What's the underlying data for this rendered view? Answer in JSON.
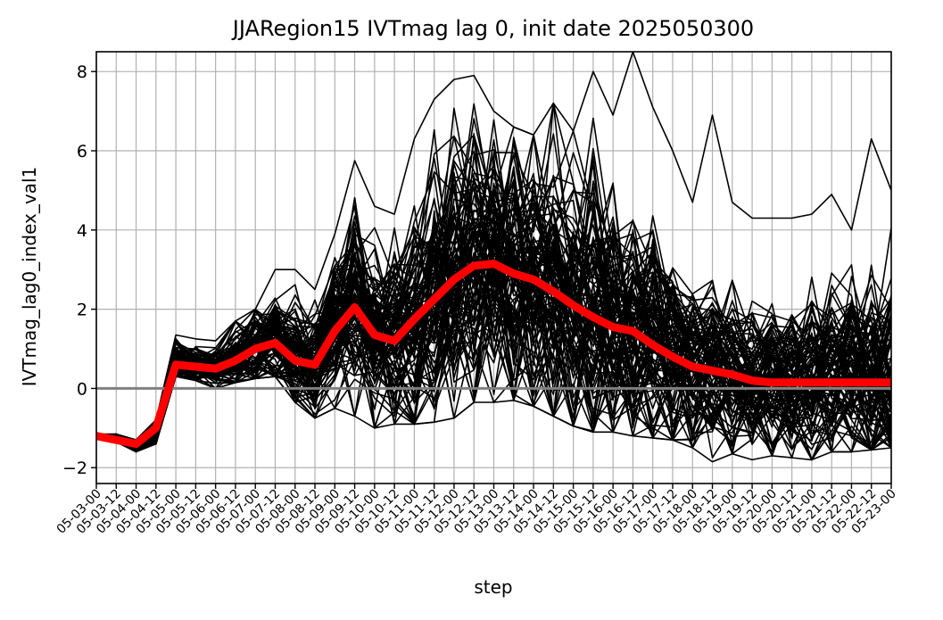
{
  "chart_data": {
    "type": "line",
    "title": "JJARegion15 IVTmag lag 0, init date 2025050300",
    "xlabel": "step",
    "ylabel": "IVTmag_lag0_index_val1",
    "ylim": [
      -2.4,
      8.5
    ],
    "yticks": [
      -2,
      0,
      2,
      4,
      6,
      8
    ],
    "ytick_labels": [
      "−2",
      "0",
      "2",
      "4",
      "6",
      "8"
    ],
    "grid": true,
    "categories": [
      "05-03-00",
      "05-03-12",
      "05-04-00",
      "05-04-12",
      "05-05-00",
      "05-05-12",
      "05-06-00",
      "05-06-12",
      "05-07-00",
      "05-07-12",
      "05-08-00",
      "05-08-12",
      "05-09-00",
      "05-09-12",
      "05-10-00",
      "05-10-12",
      "05-11-00",
      "05-11-12",
      "05-12-00",
      "05-12-12",
      "05-13-00",
      "05-13-12",
      "05-14-00",
      "05-14-12",
      "05-15-00",
      "05-15-12",
      "05-16-00",
      "05-16-12",
      "05-17-00",
      "05-17-12",
      "05-18-00",
      "05-18-12",
      "05-19-00",
      "05-19-12",
      "05-20-00",
      "05-20-12",
      "05-21-00",
      "05-21-12",
      "05-22-00",
      "05-22-12",
      "05-23-00"
    ],
    "reference_line": {
      "y": 0,
      "color": "#808080"
    },
    "mean_series": {
      "color": "#ff0000",
      "values": [
        -1.2,
        -1.3,
        -1.4,
        -1.0,
        0.6,
        0.55,
        0.5,
        0.7,
        1.0,
        1.15,
        0.7,
        0.6,
        1.45,
        2.05,
        1.35,
        1.2,
        1.75,
        2.25,
        2.75,
        3.1,
        3.15,
        2.9,
        2.75,
        2.45,
        2.1,
        1.8,
        1.55,
        1.45,
        1.1,
        0.8,
        0.55,
        0.45,
        0.35,
        0.2,
        0.15,
        0.15,
        0.15,
        0.15,
        0.15,
        0.15,
        0.15
      ]
    },
    "ensemble": {
      "color": "#000000",
      "members": 100,
      "spread": [
        0.0,
        0.08,
        0.12,
        0.25,
        0.3,
        0.25,
        0.25,
        0.4,
        0.55,
        0.6,
        0.65,
        0.7,
        0.95,
        1.2,
        1.1,
        1.1,
        1.45,
        1.75,
        1.75,
        1.75,
        1.7,
        1.7,
        1.75,
        1.75,
        1.75,
        1.7,
        1.75,
        1.6,
        1.4,
        1.25,
        1.1,
        1.05,
        1.0,
        1.0,
        1.0,
        0.95,
        1.05,
        1.05,
        1.15,
        1.2,
        1.3
      ],
      "max_values": [
        -1.15,
        -1.15,
        -1.3,
        -0.8,
        1.35,
        1.25,
        1.2,
        1.7,
        2.0,
        3.0,
        3.0,
        2.5,
        3.9,
        5.75,
        4.6,
        4.4,
        6.3,
        7.3,
        7.8,
        7.9,
        7.0,
        6.6,
        6.4,
        7.2,
        6.5,
        8.0,
        6.9,
        8.5,
        7.1,
        6.0,
        4.7,
        6.9,
        4.7,
        4.3,
        4.3,
        4.3,
        4.4,
        4.9,
        4.0,
        6.3,
        5.0
      ],
      "min_values": [
        -1.25,
        -1.35,
        -1.6,
        -1.4,
        0.3,
        0.2,
        0.0,
        0.15,
        0.25,
        0.3,
        -0.35,
        -0.75,
        -0.5,
        -0.7,
        -1.0,
        -0.9,
        -0.9,
        -0.85,
        -0.75,
        -0.35,
        -0.35,
        -0.3,
        -0.45,
        -0.7,
        -0.95,
        -1.1,
        -1.1,
        -1.2,
        -1.25,
        -1.3,
        -1.5,
        -1.85,
        -1.65,
        -1.8,
        -1.7,
        -1.75,
        -1.8,
        -1.6,
        -1.6,
        -1.55,
        -1.5
      ]
    }
  }
}
